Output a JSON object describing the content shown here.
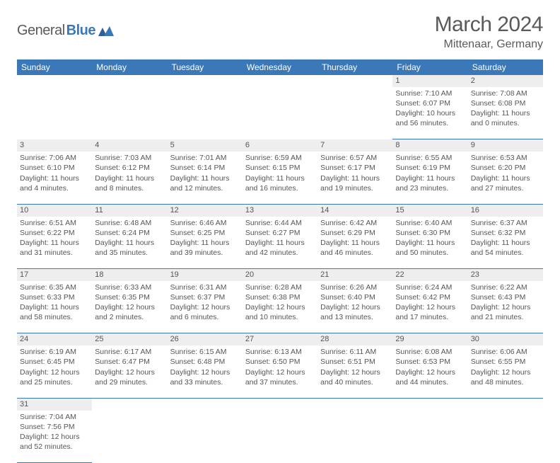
{
  "brand": {
    "part1": "General",
    "part2": "Blue"
  },
  "title": "March 2024",
  "location": "Mittenaar, Germany",
  "colors": {
    "header_bg": "#3b78b8",
    "daynum_bg": "#eeeeee",
    "rule": "#3b78b8",
    "text": "#565656"
  },
  "weekdays": [
    "Sunday",
    "Monday",
    "Tuesday",
    "Wednesday",
    "Thursday",
    "Friday",
    "Saturday"
  ],
  "weeks": [
    [
      null,
      null,
      null,
      null,
      null,
      {
        "n": "1",
        "sr": "Sunrise: 7:10 AM",
        "ss": "Sunset: 6:07 PM",
        "d1": "Daylight: 10 hours",
        "d2": "and 56 minutes."
      },
      {
        "n": "2",
        "sr": "Sunrise: 7:08 AM",
        "ss": "Sunset: 6:08 PM",
        "d1": "Daylight: 11 hours",
        "d2": "and 0 minutes."
      }
    ],
    [
      {
        "n": "3",
        "sr": "Sunrise: 7:06 AM",
        "ss": "Sunset: 6:10 PM",
        "d1": "Daylight: 11 hours",
        "d2": "and 4 minutes."
      },
      {
        "n": "4",
        "sr": "Sunrise: 7:03 AM",
        "ss": "Sunset: 6:12 PM",
        "d1": "Daylight: 11 hours",
        "d2": "and 8 minutes."
      },
      {
        "n": "5",
        "sr": "Sunrise: 7:01 AM",
        "ss": "Sunset: 6:14 PM",
        "d1": "Daylight: 11 hours",
        "d2": "and 12 minutes."
      },
      {
        "n": "6",
        "sr": "Sunrise: 6:59 AM",
        "ss": "Sunset: 6:15 PM",
        "d1": "Daylight: 11 hours",
        "d2": "and 16 minutes."
      },
      {
        "n": "7",
        "sr": "Sunrise: 6:57 AM",
        "ss": "Sunset: 6:17 PM",
        "d1": "Daylight: 11 hours",
        "d2": "and 19 minutes."
      },
      {
        "n": "8",
        "sr": "Sunrise: 6:55 AM",
        "ss": "Sunset: 6:19 PM",
        "d1": "Daylight: 11 hours",
        "d2": "and 23 minutes."
      },
      {
        "n": "9",
        "sr": "Sunrise: 6:53 AM",
        "ss": "Sunset: 6:20 PM",
        "d1": "Daylight: 11 hours",
        "d2": "and 27 minutes."
      }
    ],
    [
      {
        "n": "10",
        "sr": "Sunrise: 6:51 AM",
        "ss": "Sunset: 6:22 PM",
        "d1": "Daylight: 11 hours",
        "d2": "and 31 minutes."
      },
      {
        "n": "11",
        "sr": "Sunrise: 6:48 AM",
        "ss": "Sunset: 6:24 PM",
        "d1": "Daylight: 11 hours",
        "d2": "and 35 minutes."
      },
      {
        "n": "12",
        "sr": "Sunrise: 6:46 AM",
        "ss": "Sunset: 6:25 PM",
        "d1": "Daylight: 11 hours",
        "d2": "and 39 minutes."
      },
      {
        "n": "13",
        "sr": "Sunrise: 6:44 AM",
        "ss": "Sunset: 6:27 PM",
        "d1": "Daylight: 11 hours",
        "d2": "and 42 minutes."
      },
      {
        "n": "14",
        "sr": "Sunrise: 6:42 AM",
        "ss": "Sunset: 6:29 PM",
        "d1": "Daylight: 11 hours",
        "d2": "and 46 minutes."
      },
      {
        "n": "15",
        "sr": "Sunrise: 6:40 AM",
        "ss": "Sunset: 6:30 PM",
        "d1": "Daylight: 11 hours",
        "d2": "and 50 minutes."
      },
      {
        "n": "16",
        "sr": "Sunrise: 6:37 AM",
        "ss": "Sunset: 6:32 PM",
        "d1": "Daylight: 11 hours",
        "d2": "and 54 minutes."
      }
    ],
    [
      {
        "n": "17",
        "sr": "Sunrise: 6:35 AM",
        "ss": "Sunset: 6:33 PM",
        "d1": "Daylight: 11 hours",
        "d2": "and 58 minutes."
      },
      {
        "n": "18",
        "sr": "Sunrise: 6:33 AM",
        "ss": "Sunset: 6:35 PM",
        "d1": "Daylight: 12 hours",
        "d2": "and 2 minutes."
      },
      {
        "n": "19",
        "sr": "Sunrise: 6:31 AM",
        "ss": "Sunset: 6:37 PM",
        "d1": "Daylight: 12 hours",
        "d2": "and 6 minutes."
      },
      {
        "n": "20",
        "sr": "Sunrise: 6:28 AM",
        "ss": "Sunset: 6:38 PM",
        "d1": "Daylight: 12 hours",
        "d2": "and 10 minutes."
      },
      {
        "n": "21",
        "sr": "Sunrise: 6:26 AM",
        "ss": "Sunset: 6:40 PM",
        "d1": "Daylight: 12 hours",
        "d2": "and 13 minutes."
      },
      {
        "n": "22",
        "sr": "Sunrise: 6:24 AM",
        "ss": "Sunset: 6:42 PM",
        "d1": "Daylight: 12 hours",
        "d2": "and 17 minutes."
      },
      {
        "n": "23",
        "sr": "Sunrise: 6:22 AM",
        "ss": "Sunset: 6:43 PM",
        "d1": "Daylight: 12 hours",
        "d2": "and 21 minutes."
      }
    ],
    [
      {
        "n": "24",
        "sr": "Sunrise: 6:19 AM",
        "ss": "Sunset: 6:45 PM",
        "d1": "Daylight: 12 hours",
        "d2": "and 25 minutes."
      },
      {
        "n": "25",
        "sr": "Sunrise: 6:17 AM",
        "ss": "Sunset: 6:47 PM",
        "d1": "Daylight: 12 hours",
        "d2": "and 29 minutes."
      },
      {
        "n": "26",
        "sr": "Sunrise: 6:15 AM",
        "ss": "Sunset: 6:48 PM",
        "d1": "Daylight: 12 hours",
        "d2": "and 33 minutes."
      },
      {
        "n": "27",
        "sr": "Sunrise: 6:13 AM",
        "ss": "Sunset: 6:50 PM",
        "d1": "Daylight: 12 hours",
        "d2": "and 37 minutes."
      },
      {
        "n": "28",
        "sr": "Sunrise: 6:11 AM",
        "ss": "Sunset: 6:51 PM",
        "d1": "Daylight: 12 hours",
        "d2": "and 40 minutes."
      },
      {
        "n": "29",
        "sr": "Sunrise: 6:08 AM",
        "ss": "Sunset: 6:53 PM",
        "d1": "Daylight: 12 hours",
        "d2": "and 44 minutes."
      },
      {
        "n": "30",
        "sr": "Sunrise: 6:06 AM",
        "ss": "Sunset: 6:55 PM",
        "d1": "Daylight: 12 hours",
        "d2": "and 48 minutes."
      }
    ],
    [
      {
        "n": "31",
        "sr": "Sunrise: 7:04 AM",
        "ss": "Sunset: 7:56 PM",
        "d1": "Daylight: 12 hours",
        "d2": "and 52 minutes."
      },
      null,
      null,
      null,
      null,
      null,
      null
    ]
  ]
}
